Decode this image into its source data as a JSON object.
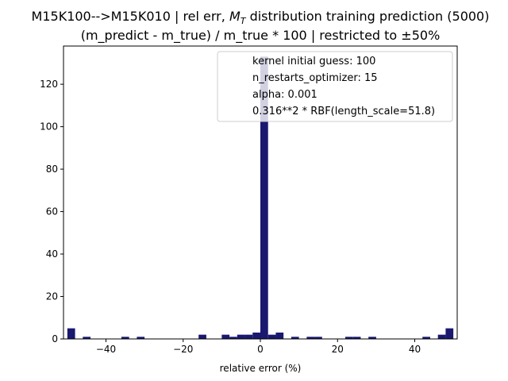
{
  "chart_data": {
    "type": "bar",
    "title_line1": "M15K100-->M15K010 | rel err, ",
    "title_symbol": "M",
    "title_symbol_sub": "T",
    "title_line1_suffix": " distribution training prediction (5000)",
    "title_line2": "(m_predict - m_true) / m_true * 100 | restricted to ±50%",
    "xlabel": "relative error (%)",
    "ylabel": "",
    "xlim": [
      -51,
      51
    ],
    "ylim": [
      0,
      138
    ],
    "bin_width": 2,
    "bin_left_edges": [
      -50,
      -48,
      -46,
      -44,
      -42,
      -40,
      -38,
      -36,
      -34,
      -32,
      -30,
      -28,
      -26,
      -24,
      -22,
      -20,
      -18,
      -16,
      -14,
      -12,
      -10,
      -8,
      -6,
      -4,
      -2,
      0,
      2,
      4,
      6,
      8,
      10,
      12,
      14,
      16,
      18,
      20,
      22,
      24,
      26,
      28,
      30,
      32,
      34,
      36,
      38,
      40,
      42,
      44,
      46,
      48
    ],
    "values": [
      5,
      0,
      1,
      0,
      0,
      0,
      0,
      1,
      0,
      1,
      0,
      0,
      0,
      0,
      0,
      0,
      0,
      2,
      0,
      0,
      2,
      1,
      2,
      2,
      3,
      133,
      2,
      3,
      0,
      1,
      0,
      1,
      1,
      0,
      0,
      0,
      1,
      1,
      0,
      1,
      0,
      0,
      0,
      0,
      0,
      0,
      1,
      0,
      2,
      5
    ],
    "x_ticks": [
      -40,
      -20,
      0,
      20,
      40
    ],
    "x_tick_labels": [
      "−40",
      "−20",
      "0",
      "20",
      "40"
    ],
    "y_ticks": [
      0,
      20,
      40,
      60,
      80,
      100,
      120
    ],
    "y_tick_labels": [
      "0",
      "20",
      "40",
      "60",
      "80",
      "100",
      "120"
    ],
    "bar_color": "#191970",
    "grid": false,
    "legend": {
      "placement": "top-right",
      "entries": [
        "kernel initial guess: 100",
        "n_restarts_optimizer: 15",
        "alpha: 0.001",
        "0.316**2 * RBF(length_scale=51.8)"
      ]
    }
  }
}
